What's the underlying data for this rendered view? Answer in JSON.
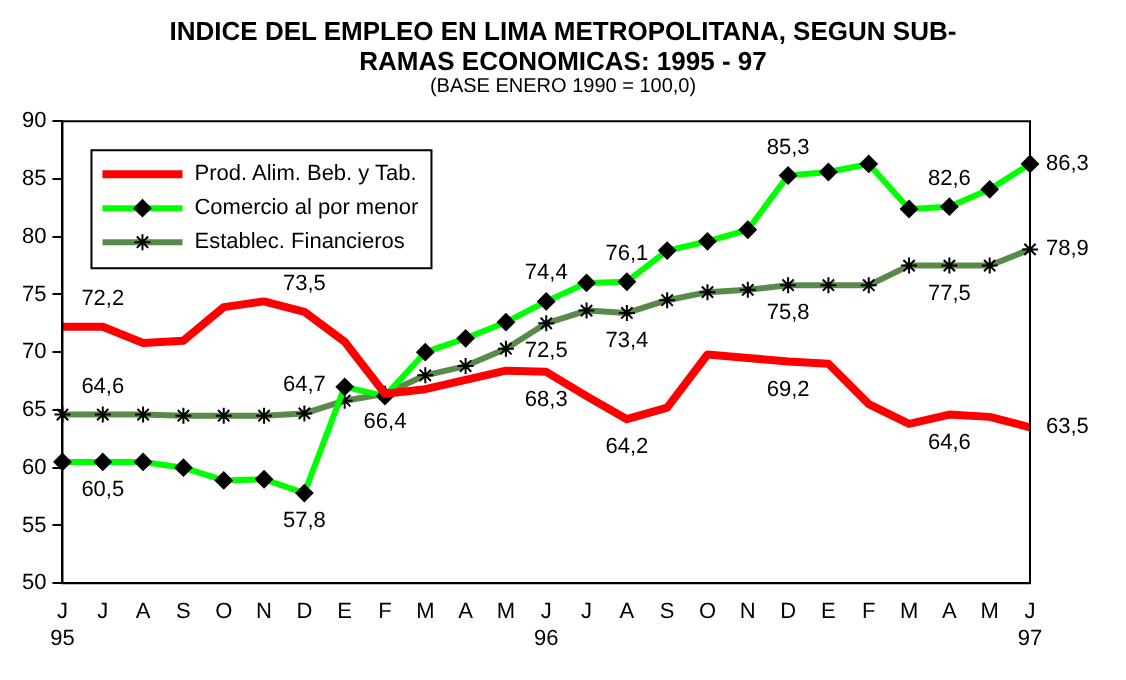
{
  "chart_data": {
    "type": "line",
    "title": "INDICE DEL EMPLEO EN LIMA METROPOLITANA, SEGUN SUB-RAMAS ECONOMICAS: 1995 - 97",
    "subtitle": "(BASE  ENERO 1990 = 100,0)",
    "categories": [
      "J\n95",
      "J",
      "A",
      "S",
      "O",
      "N",
      "D",
      "E",
      "F",
      "M",
      "A",
      "M",
      "J\n96",
      "J",
      "A",
      "S",
      "O",
      "N",
      "D",
      "E",
      "F",
      "M",
      "A",
      "M",
      "J\n97"
    ],
    "series": [
      {
        "name": "Prod. Alim. Beb. y Tab.",
        "color": "#ff0000",
        "marker": "none",
        "values": [
          72.2,
          72.2,
          70.8,
          71.0,
          73.9,
          74.4,
          73.5,
          70.9,
          66.4,
          66.8,
          67.6,
          68.4,
          68.3,
          66.2,
          64.2,
          65.2,
          69.8,
          69.5,
          69.2,
          69.0,
          65.5,
          63.8,
          64.6,
          64.4,
          63.5
        ],
        "value_labels": [
          null,
          "72,2",
          null,
          null,
          null,
          null,
          "73,5",
          null,
          "66,4",
          null,
          null,
          null,
          "68,3",
          null,
          "64,2",
          null,
          null,
          null,
          "69,2",
          null,
          null,
          null,
          "64,6",
          null,
          "63,5"
        ]
      },
      {
        "name": "Comercio al por menor",
        "color": "#00ff00",
        "marker": "diamond",
        "values": [
          60.5,
          60.5,
          60.5,
          60.0,
          58.9,
          59.0,
          57.8,
          67.0,
          66.2,
          70.0,
          71.2,
          72.6,
          74.4,
          76.0,
          76.1,
          78.8,
          79.6,
          80.6,
          85.3,
          85.6,
          86.3,
          82.4,
          82.6,
          84.1,
          86.3
        ],
        "value_labels": [
          null,
          "60,5",
          null,
          null,
          null,
          null,
          "57,8",
          null,
          null,
          null,
          null,
          null,
          "74,4",
          null,
          "76,1",
          null,
          null,
          null,
          "85,3",
          null,
          null,
          null,
          "82,6",
          null,
          "86,3"
        ]
      },
      {
        "name": "Establec. Financieros",
        "color": "#5a8a4a",
        "marker": "cross",
        "values": [
          64.6,
          64.6,
          64.6,
          64.5,
          64.5,
          64.5,
          64.7,
          65.8,
          66.4,
          68.0,
          68.8,
          70.3,
          72.5,
          73.6,
          73.4,
          74.5,
          75.2,
          75.4,
          75.8,
          75.8,
          75.8,
          77.5,
          77.5,
          77.5,
          78.9
        ],
        "value_labels": [
          null,
          "64,6",
          null,
          null,
          null,
          null,
          "64,7",
          null,
          null,
          null,
          null,
          null,
          "72,5",
          null,
          "73,4",
          null,
          null,
          null,
          "75,8",
          null,
          null,
          null,
          "77,5",
          null,
          "78,9"
        ]
      }
    ],
    "ylim": [
      50,
      90
    ],
    "yticks": [
      50,
      55,
      60,
      65,
      70,
      75,
      80,
      85,
      90
    ],
    "grid": false,
    "legend": "top left"
  }
}
